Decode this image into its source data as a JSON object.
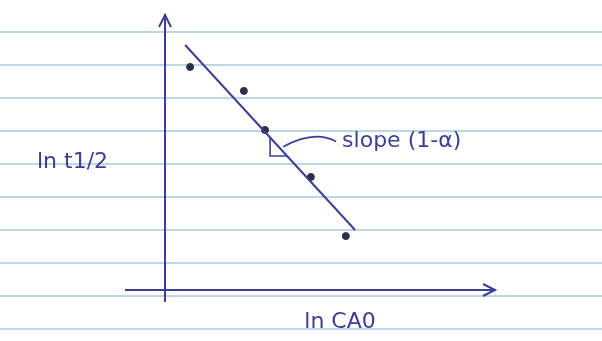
{
  "chart_data": {
    "type": "scatter",
    "x_label": "ln CA0",
    "y_label": "ln t1/2",
    "annotation": "slope (1-α)",
    "x": [
      0.76,
      2.39,
      3.03,
      4.42,
      5.48
    ],
    "values": [
      8.11,
      7.24,
      5.82,
      4.11,
      1.96
    ],
    "color": "#2e2e48",
    "marker": "circle",
    "trend_line": {
      "x": [
        0.61,
        5.76
      ],
      "values": [
        8.91,
        2.18
      ],
      "color": "#3b3f9a",
      "line_style": "solid"
    },
    "xlim": [
      0,
      10
    ],
    "ylim": [
      0,
      10
    ],
    "tick_labels": false,
    "grid": false
  }
}
